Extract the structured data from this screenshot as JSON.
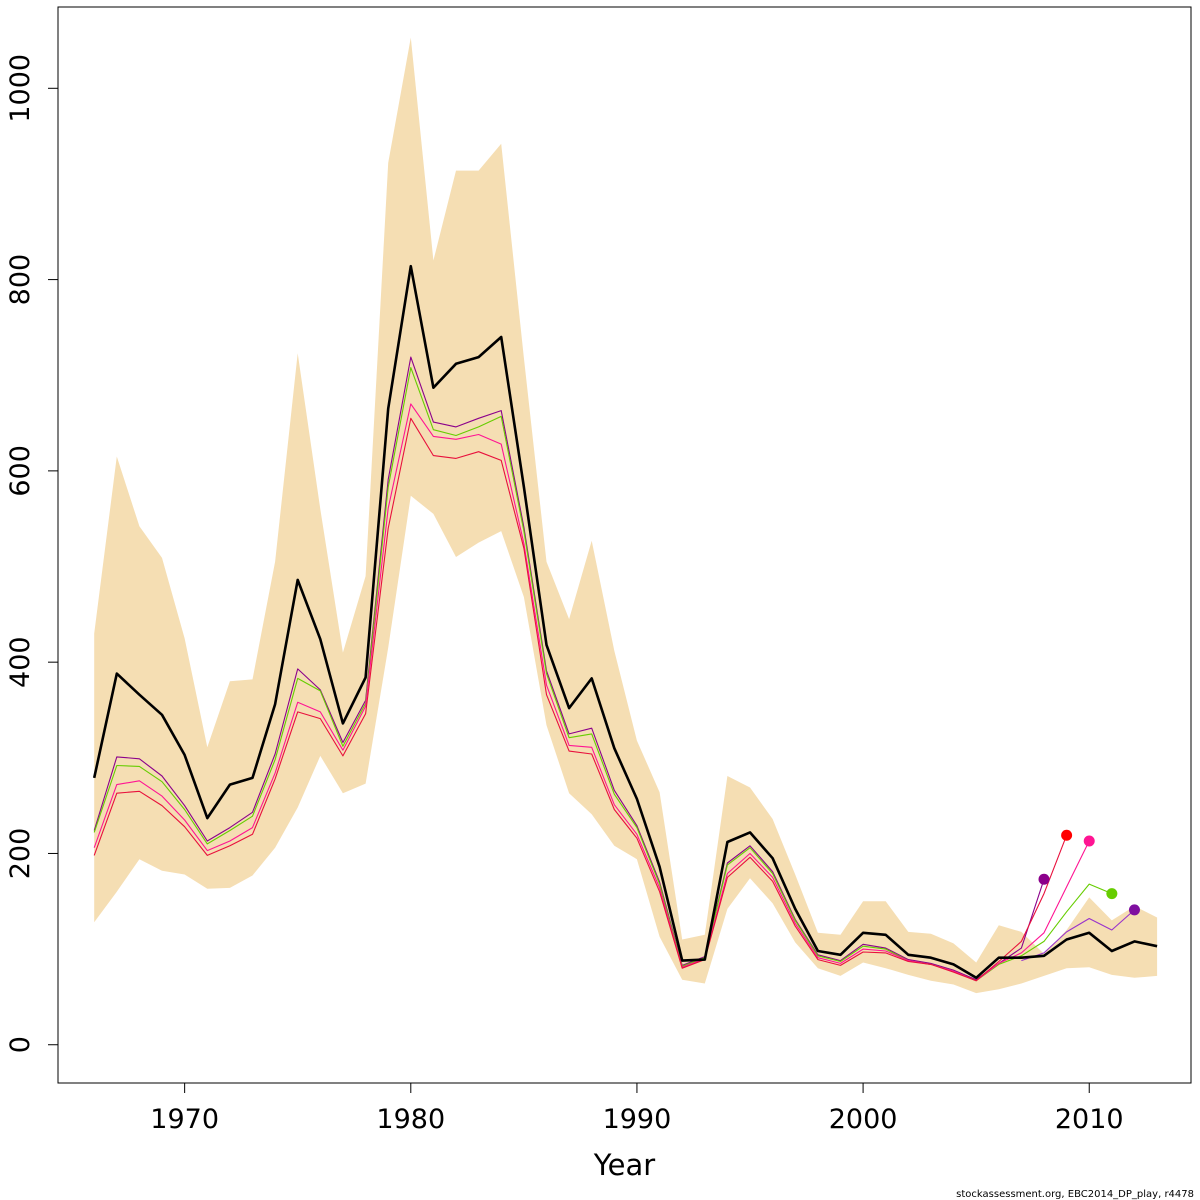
{
  "chart_data": {
    "type": "line",
    "title": "",
    "xlabel": "Year",
    "ylabel": "",
    "xlim": [
      1964.4,
      2014.5
    ],
    "ylim": [
      -40,
      1085
    ],
    "x_ticks": [
      1970,
      1980,
      1990,
      2000,
      2010
    ],
    "y_ticks": [
      0,
      200,
      400,
      600,
      800,
      1000
    ],
    "grid": false,
    "legend": "none",
    "footnote": "stockassessment.org, EBC2014_DP_play, r4478",
    "band": {
      "color": "#f5deb3",
      "x": [
        1966,
        1967,
        1968,
        1969,
        1970,
        1971,
        1972,
        1973,
        1974,
        1975,
        1976,
        1977,
        1978,
        1979,
        1980,
        1981,
        1982,
        1983,
        1984,
        1985,
        1986,
        1987,
        1988,
        1989,
        1990,
        1991,
        1992,
        1993,
        1994,
        1995,
        1996,
        1997,
        1998,
        1999,
        2000,
        2001,
        2002,
        2003,
        2004,
        2005,
        2006,
        2007,
        2008,
        2009,
        2010,
        2011,
        2012,
        2013
      ],
      "upper": [
        430,
        615,
        542,
        509,
        425,
        311,
        380,
        382,
        505,
        723,
        560,
        410,
        490,
        922,
        1053,
        820,
        914,
        914,
        942,
        718,
        505,
        445,
        527,
        412,
        318,
        264,
        110,
        115,
        281,
        269,
        236,
        178,
        117,
        115,
        150,
        150,
        118,
        116,
        106,
        86,
        125,
        118,
        95,
        120,
        154,
        130,
        145,
        133
      ],
      "lower": [
        128,
        160,
        194,
        182,
        178,
        163,
        164,
        177,
        206,
        248,
        302,
        263,
        273,
        415,
        574,
        555,
        510,
        525,
        537,
        468,
        334,
        263,
        241,
        208,
        194,
        113,
        68,
        64,
        142,
        174,
        148,
        107,
        80,
        72,
        86,
        80,
        73,
        67,
        63,
        54,
        58,
        64,
        72,
        80,
        81,
        73,
        70,
        72
      ]
    },
    "series": [
      {
        "color": "#000000",
        "x": [
          1966,
          1967,
          1968,
          1969,
          1970,
          1971,
          1972,
          1973,
          1974,
          1975,
          1976,
          1977,
          1978,
          1979,
          1980,
          1981,
          1982,
          1983,
          1984,
          1985,
          1986,
          1987,
          1988,
          1989,
          1990,
          1991,
          1992,
          1993,
          1994,
          1995,
          1996,
          1997,
          1998,
          1999,
          2000,
          2001,
          2002,
          2003,
          2004,
          2005,
          2006,
          2007,
          2008,
          2009,
          2010,
          2011,
          2012,
          2013
        ],
        "values": [
          279,
          388,
          366,
          345,
          303,
          237,
          272,
          279,
          356,
          486,
          424,
          336,
          384,
          665,
          814,
          687,
          712,
          719,
          740,
          583,
          418,
          352,
          383,
          310,
          257,
          186,
          88,
          89,
          212,
          222,
          195,
          142,
          98,
          94,
          117,
          115,
          94,
          91,
          84,
          70,
          91,
          91,
          93,
          110,
          117,
          98,
          108,
          103
        ]
      },
      {
        "color": "#8b008b",
        "x": [
          1966,
          1967,
          1968,
          1969,
          1970,
          1971,
          1972,
          1973,
          1974,
          1975,
          1976,
          1977,
          1978,
          1979,
          1980,
          1981,
          1982,
          1983,
          1984,
          1985,
          1986,
          1987,
          1988,
          1989,
          1990,
          1991,
          1992,
          1993,
          1994,
          1995,
          1996,
          1997,
          1998,
          1999,
          2000,
          2001,
          2002,
          2003,
          2004,
          2005,
          2006,
          2007,
          2008
        ],
        "values": [
          224,
          301,
          299,
          281,
          250,
          213,
          227,
          243,
          304,
          393,
          371,
          316,
          360,
          591,
          719,
          651,
          646,
          655,
          663,
          541,
          391,
          325,
          331,
          266,
          229,
          170,
          83,
          92,
          190,
          208,
          181,
          131,
          94,
          88,
          105,
          101,
          89,
          85,
          78,
          68,
          85,
          101,
          173
        ]
      },
      {
        "color": "#66cd00",
        "x": [
          1966,
          1967,
          1968,
          1969,
          1970,
          1971,
          1972,
          1973,
          1974,
          1975,
          1976,
          1977,
          1978,
          1979,
          1980,
          1981,
          1982,
          1983,
          1984,
          1985,
          1986,
          1987,
          1988,
          1989,
          1990,
          1991,
          1992,
          1993,
          1994,
          1995,
          1996,
          1997,
          1998,
          1999,
          2000,
          2001,
          2002,
          2003,
          2004,
          2005,
          2006,
          2007,
          2008,
          2009,
          2010,
          2011
        ],
        "values": [
          222,
          292,
          291,
          275,
          246,
          210,
          224,
          239,
          298,
          383,
          370,
          312,
          357,
          583,
          708,
          643,
          637,
          646,
          657,
          537,
          388,
          321,
          325,
          262,
          227,
          168,
          82,
          91,
          188,
          206,
          179,
          130,
          93,
          87,
          103,
          100,
          88,
          84,
          77,
          67,
          84,
          93,
          108,
          139,
          168,
          158
        ]
      },
      {
        "color": "#9932cc",
        "x": [
          2007,
          2008,
          2009,
          2010,
          2011,
          2012
        ],
        "values": [
          88,
          96,
          118,
          132,
          120,
          141
        ]
      },
      {
        "color": "#ff1493",
        "x": [
          1966,
          1967,
          1968,
          1969,
          1970,
          1971,
          1972,
          1973,
          1974,
          1975,
          1976,
          1977,
          1978,
          1979,
          1980,
          1981,
          1982,
          1983,
          1984,
          1985,
          1986,
          1987,
          1988,
          1989,
          1990,
          1991,
          1992,
          1993,
          1994,
          1995,
          1996,
          1997,
          1998,
          1999,
          2000,
          2001,
          2002,
          2003,
          2004,
          2005,
          2006,
          2007,
          2008,
          2009,
          2010
        ],
        "values": [
          206,
          272,
          276,
          260,
          235,
          203,
          213,
          227,
          284,
          358,
          348,
          308,
          354,
          561,
          670,
          636,
          633,
          638,
          628,
          524,
          376,
          313,
          311,
          251,
          220,
          164,
          81,
          90,
          179,
          200,
          175,
          127,
          91,
          85,
          100,
          98,
          88,
          84,
          77,
          67,
          85,
          96,
          117,
          165,
          213
        ]
      },
      {
        "color": "#e8103c",
        "x": [
          1966,
          1967,
          1968,
          1969,
          1970,
          1971,
          1972,
          1973,
          1974,
          1975,
          1976,
          1977,
          1978,
          1979,
          1980,
          1981,
          1982,
          1983,
          1984,
          1985,
          1986,
          1987,
          1988,
          1989,
          1990,
          1991,
          1992,
          1993,
          1994,
          1995,
          1996,
          1997,
          1998,
          1999,
          2000,
          2001,
          2002,
          2003,
          2004,
          2005,
          2006,
          2007,
          2008,
          2009
        ],
        "values": [
          198,
          263,
          265,
          250,
          228,
          198,
          208,
          220,
          278,
          348,
          341,
          302,
          346,
          540,
          655,
          616,
          613,
          620,
          611,
          519,
          366,
          307,
          304,
          246,
          216,
          160,
          80,
          89,
          175,
          196,
          171,
          124,
          89,
          83,
          97,
          96,
          87,
          84,
          76,
          67,
          87,
          108,
          158,
          219
        ]
      }
    ],
    "end_points": [
      {
        "color": "#8b008b",
        "x": 2008,
        "y": 173
      },
      {
        "color": "#ff0000",
        "x": 2009,
        "y": 219
      },
      {
        "color": "#ff1493",
        "x": 2010,
        "y": 213
      },
      {
        "color": "#66cd00",
        "x": 2011,
        "y": 158
      },
      {
        "color": "#7f0fa0",
        "x": 2012,
        "y": 141
      }
    ]
  }
}
